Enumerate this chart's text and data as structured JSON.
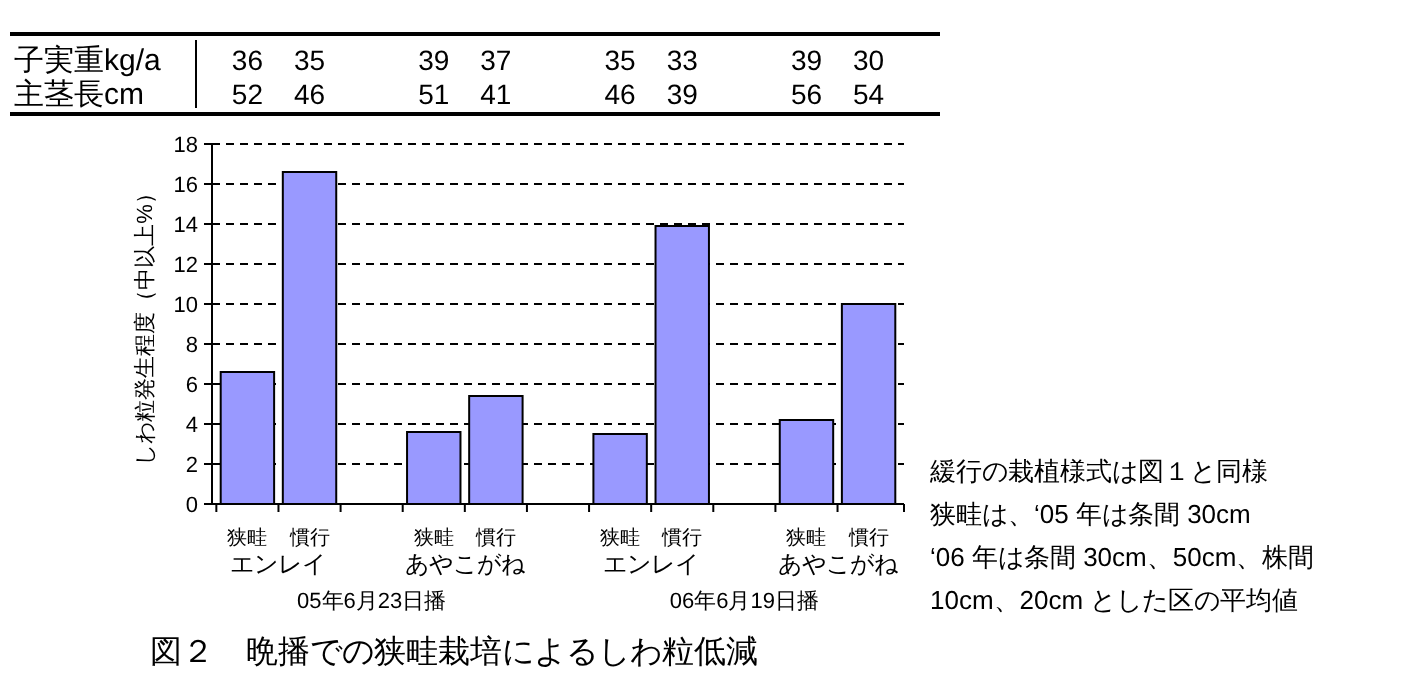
{
  "chart_data": {
    "type": "bar",
    "title": "図２　晩播での狭畦栽培によるしわ粒低減",
    "ylabel": "しわ粒発生程度（中以上%）",
    "categories": [
      "狭畦",
      "慣行",
      null,
      "狭畦",
      "慣行",
      null,
      "狭畦",
      "慣行",
      null,
      "狭畦",
      "慣行"
    ],
    "values": [
      6.6,
      16.6,
      null,
      3.6,
      5.4,
      null,
      3.5,
      13.9,
      null,
      4.2,
      10.0
    ],
    "color": "#9999ff",
    "ylim": [
      0,
      18
    ],
    "yticks": [
      0,
      2,
      4,
      6,
      8,
      10,
      12,
      14,
      16,
      18
    ],
    "grid": "y",
    "line_style": "dashed",
    "annotations": [
      "子実重kg/a",
      "36",
      "35",
      "39",
      "37",
      "35",
      "33",
      "39",
      "30",
      "主茎長cm",
      "52",
      "46",
      "51",
      "41",
      "46",
      "39",
      "56",
      "54",
      "エンレイ",
      "あやこがね",
      "エンレイ",
      "あやこがね",
      "05年6月23日播",
      "06年6月19日播",
      "緩行の栽植様式は図１と同様",
      "狭畦は、‘05 年は条間 30cm",
      "‘06 年は条間 30cm、50cm、株間",
      "10cm、20cm とした区の平均値"
    ]
  }
}
